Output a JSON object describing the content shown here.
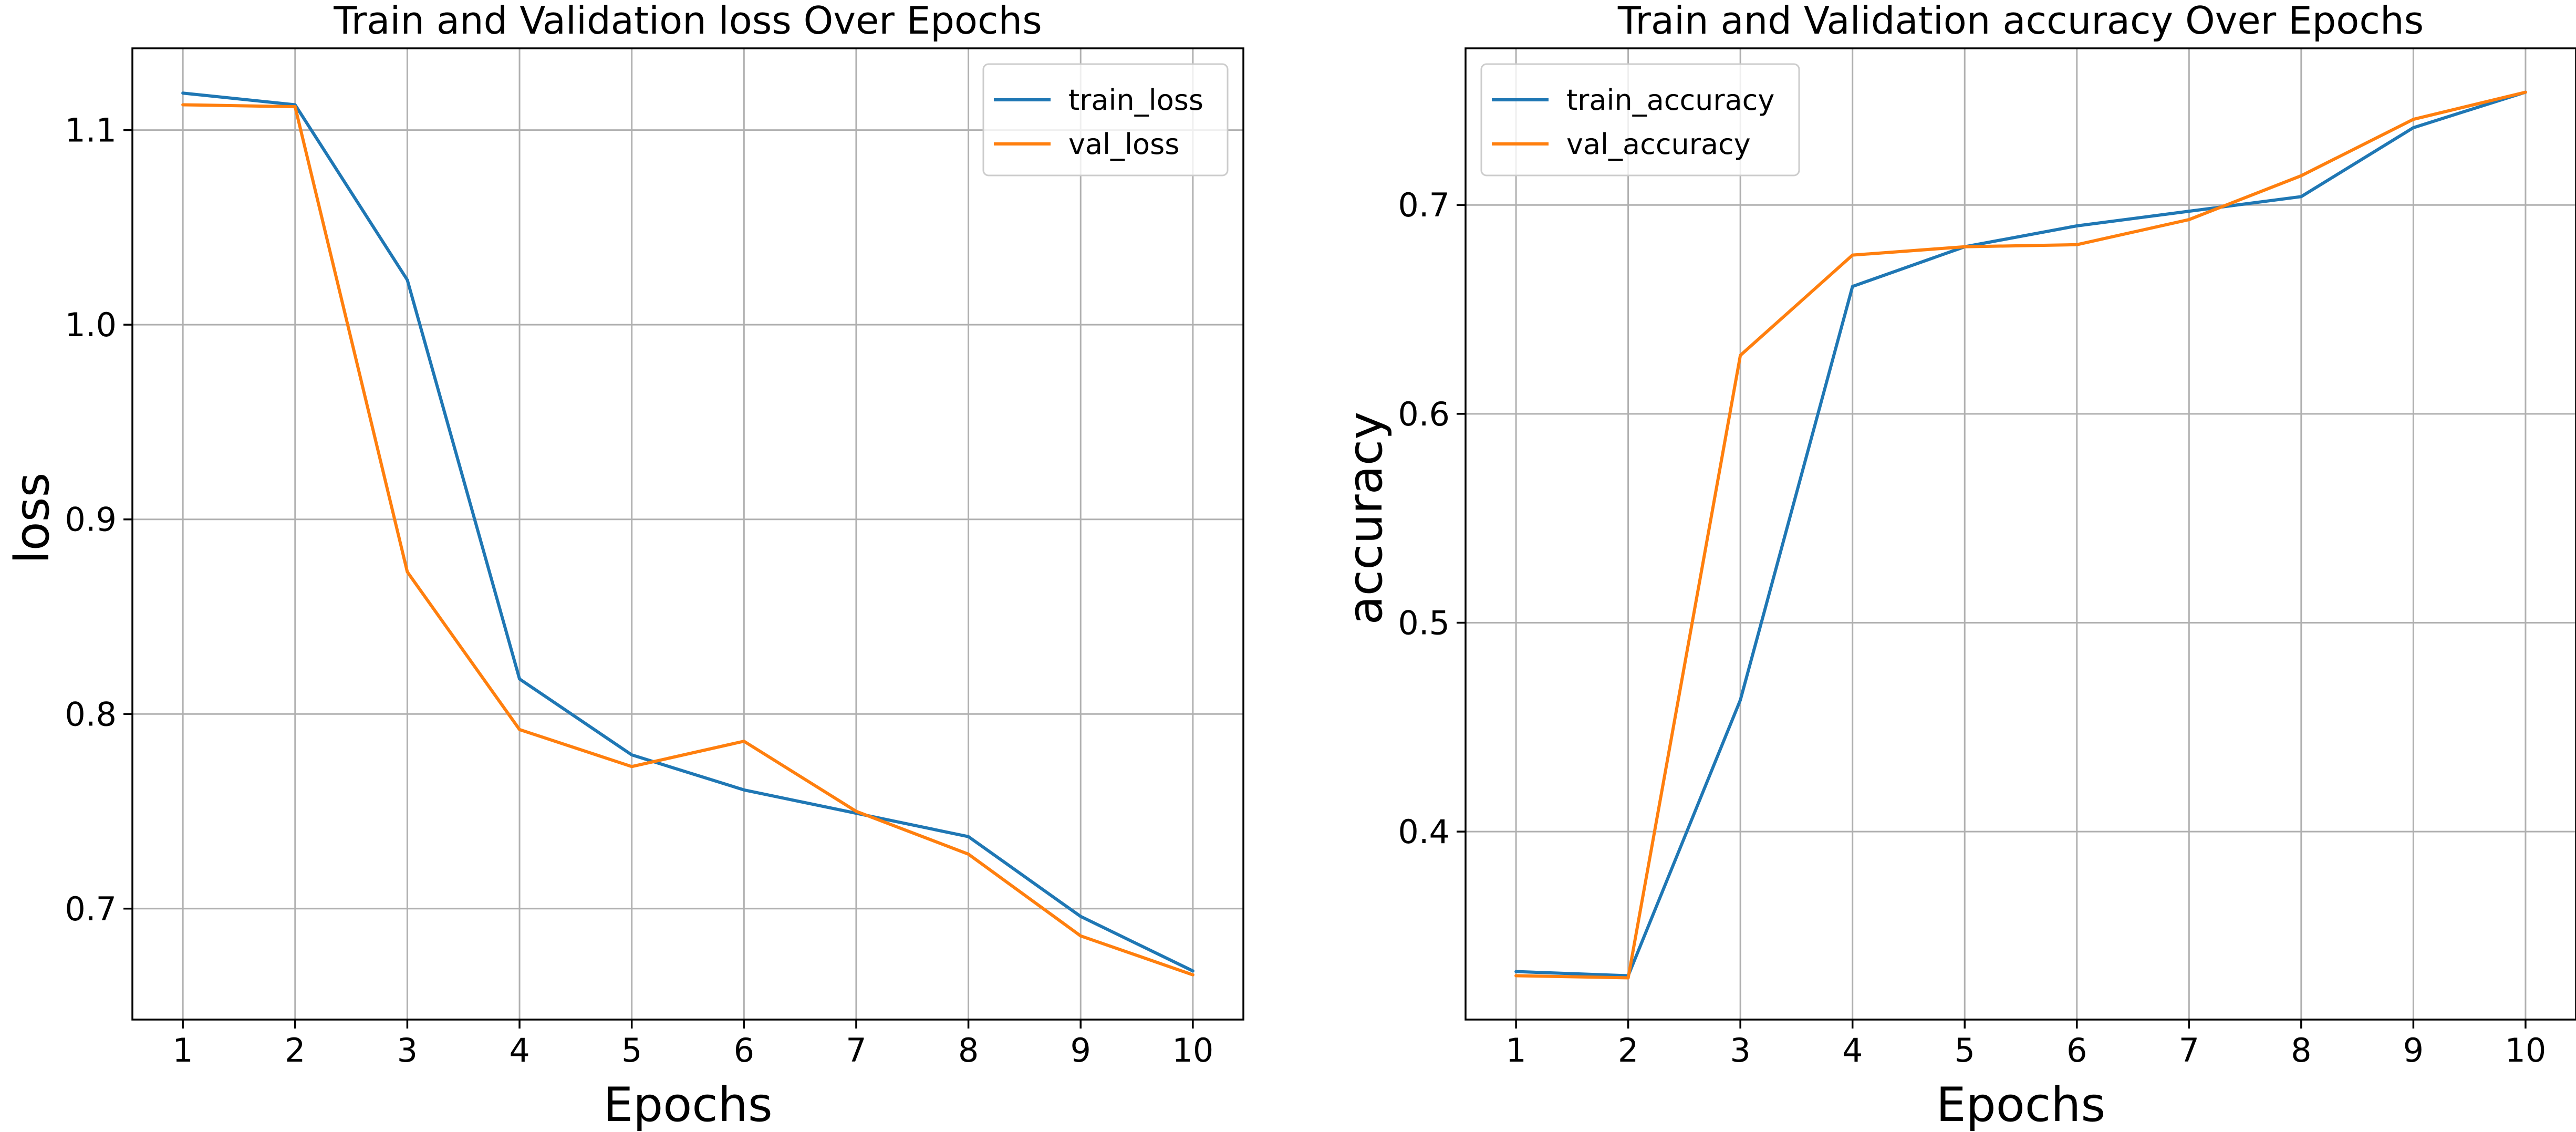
{
  "chart_data": [
    {
      "type": "line",
      "title": "Train and Validation loss Over Epochs",
      "xlabel": "Epochs",
      "ylabel": "loss",
      "x": [
        1,
        2,
        3,
        4,
        5,
        6,
        7,
        8,
        9,
        10
      ],
      "xticks": [
        "1",
        "2",
        "3",
        "4",
        "5",
        "6",
        "7",
        "8",
        "9",
        "10"
      ],
      "yticks": [
        0.7,
        0.8,
        0.9,
        1.0,
        1.1
      ],
      "ytick_labels": [
        "0.7",
        "0.8",
        "0.9",
        "1.0",
        "1.1"
      ],
      "xlim": [
        0.55,
        10.45
      ],
      "ylim": [
        0.643,
        1.142
      ],
      "grid": true,
      "legend_position": "top-right",
      "series": [
        {
          "name": "train_loss",
          "color": "#1f77b4",
          "values": [
            1.119,
            1.113,
            1.023,
            0.818,
            0.779,
            0.761,
            0.749,
            0.737,
            0.696,
            0.668
          ]
        },
        {
          "name": "val_loss",
          "color": "#ff7f0e",
          "values": [
            1.113,
            1.112,
            0.873,
            0.792,
            0.773,
            0.786,
            0.75,
            0.728,
            0.686,
            0.666
          ]
        }
      ]
    },
    {
      "type": "line",
      "title": "Train and Validation accuracy Over Epochs",
      "xlabel": "Epochs",
      "ylabel": "accuracy",
      "x": [
        1,
        2,
        3,
        4,
        5,
        6,
        7,
        8,
        9,
        10
      ],
      "xticks": [
        "1",
        "2",
        "3",
        "4",
        "5",
        "6",
        "7",
        "8",
        "9",
        "10"
      ],
      "yticks": [
        0.4,
        0.5,
        0.6,
        0.7
      ],
      "ytick_labels": [
        "0.4",
        "0.5",
        "0.6",
        "0.7"
      ],
      "xlim": [
        0.55,
        10.45
      ],
      "ylim": [
        0.31,
        0.775
      ],
      "grid": true,
      "legend_position": "top-left",
      "series": [
        {
          "name": "train_accuracy",
          "color": "#1f77b4",
          "values": [
            0.333,
            0.331,
            0.463,
            0.661,
            0.68,
            0.69,
            0.697,
            0.704,
            0.737,
            0.754
          ]
        },
        {
          "name": "val_accuracy",
          "color": "#ff7f0e",
          "values": [
            0.331,
            0.33,
            0.628,
            0.676,
            0.68,
            0.681,
            0.693,
            0.714,
            0.741,
            0.754
          ]
        }
      ]
    }
  ]
}
